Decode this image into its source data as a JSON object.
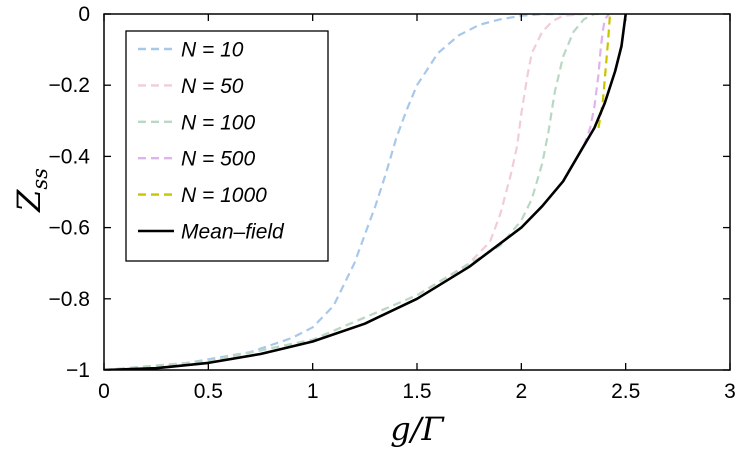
{
  "chart_data": {
    "type": "line",
    "title": "",
    "xlabel": "g/Γ",
    "ylabel": "Z_ss",
    "xlim": [
      0,
      3
    ],
    "ylim": [
      -1,
      0
    ],
    "xticks": [
      0,
      0.5,
      1,
      1.5,
      2,
      2.5,
      3
    ],
    "yticks": [
      0,
      -0.2,
      -0.4,
      -0.6,
      -0.8,
      -1
    ],
    "legend_placement": "top-left",
    "grid": false,
    "series": [
      {
        "name": "N = 10",
        "color": "#a8c8ea",
        "style": "dashed",
        "x": [
          0,
          0.3,
          0.5,
          0.7,
          0.9,
          1.0,
          1.1,
          1.2,
          1.25,
          1.3,
          1.35,
          1.4,
          1.45,
          1.5,
          1.6,
          1.7,
          1.8,
          1.9,
          2.0,
          2.1,
          2.2,
          2.3
        ],
        "y": [
          -1.0,
          -0.99,
          -0.97,
          -0.95,
          -0.91,
          -0.88,
          -0.82,
          -0.7,
          -0.62,
          -0.54,
          -0.45,
          -0.35,
          -0.27,
          -0.2,
          -0.11,
          -0.06,
          -0.03,
          -0.015,
          -0.005,
          0,
          0,
          0
        ]
      },
      {
        "name": "N = 50",
        "color": "#f0cdd8",
        "style": "dashed",
        "x": [
          0,
          0.5,
          1.0,
          1.5,
          1.75,
          1.85,
          1.9,
          1.95,
          1.98,
          2.0,
          2.03,
          2.05,
          2.1,
          2.15,
          2.2,
          2.3
        ],
        "y": [
          -1.0,
          -0.975,
          -0.915,
          -0.79,
          -0.7,
          -0.64,
          -0.56,
          -0.45,
          -0.37,
          -0.28,
          -0.17,
          -0.11,
          -0.05,
          -0.02,
          -0.005,
          0
        ]
      },
      {
        "name": "N = 100",
        "color": "#b9d8c3",
        "style": "dashed",
        "x": [
          0,
          0.5,
          1.0,
          1.5,
          1.9,
          2.0,
          2.05,
          2.1,
          2.13,
          2.16,
          2.2,
          2.25,
          2.3,
          2.35,
          2.4
        ],
        "y": [
          -1.0,
          -0.975,
          -0.915,
          -0.79,
          -0.65,
          -0.58,
          -0.52,
          -0.42,
          -0.33,
          -0.22,
          -0.12,
          -0.05,
          -0.015,
          0,
          0
        ]
      },
      {
        "name": "N = 500",
        "color": "#dfb4ec",
        "style": "dashed",
        "x": [
          2.3,
          2.33,
          2.35,
          2.37,
          2.38,
          2.39,
          2.4,
          2.42
        ],
        "y": [
          -0.37,
          -0.32,
          -0.26,
          -0.17,
          -0.1,
          -0.05,
          -0.015,
          0
        ]
      },
      {
        "name": "N = 1000",
        "color": "#c9c400",
        "style": "dashed",
        "x": [
          2.37,
          2.39,
          2.405,
          2.415,
          2.42,
          2.425
        ],
        "y": [
          -0.32,
          -0.25,
          -0.15,
          -0.08,
          -0.04,
          0
        ]
      },
      {
        "name": "Mean–field",
        "color": "#000000",
        "style": "solid",
        "x": [
          0,
          0.25,
          0.5,
          0.75,
          1.0,
          1.25,
          1.5,
          1.75,
          2.0,
          2.1,
          2.2,
          2.3,
          2.35,
          2.4,
          2.45,
          2.48,
          2.5
        ],
        "y": [
          -1.0,
          -0.995,
          -0.98,
          -0.955,
          -0.92,
          -0.87,
          -0.8,
          -0.71,
          -0.6,
          -0.54,
          -0.47,
          -0.37,
          -0.32,
          -0.25,
          -0.16,
          -0.09,
          0
        ]
      }
    ]
  }
}
